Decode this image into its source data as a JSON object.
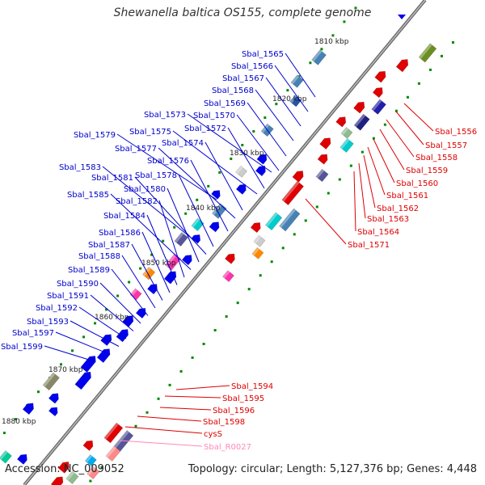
{
  "title": "Shewanella baltica OS155, complete genome",
  "footer": {
    "accession": "Accession: NC_009052",
    "summary": "Topology: circular; Length: 5,127,376 bp; Genes: 4,448"
  },
  "colors": {
    "backbone": "#777777",
    "forward": "#e00000",
    "reverse": "#0000ee",
    "rna": "#ff99cc",
    "tick": "#008800"
  },
  "ticks": [
    "1810 kbp",
    "1820 kbp",
    "1830 kbp",
    "1840 kbp",
    "1850 kbp",
    "1860 kbp",
    "1870 kbp",
    "1880 kbp"
  ],
  "labels_right": [
    "Sbal_1556",
    "Sbal_1557",
    "Sbal_1558",
    "Sbal_1559",
    "Sbal_1560",
    "Sbal_1561",
    "Sbal_1562",
    "Sbal_1563",
    "Sbal_1564",
    "Sbal_1571"
  ],
  "labels_left": [
    "Sbal_1565",
    "Sbal_1566",
    "Sbal_1567",
    "Sbal_1568",
    "Sbal_1569",
    "Sbal_1570",
    "Sbal_1573",
    "Sbal_1572",
    "Sbal_1575",
    "Sbal_1579",
    "Sbal_1574",
    "Sbal_1577",
    "Sbal_1576",
    "Sbal_1583",
    "Sbal_1578",
    "Sbal_1581",
    "Sbal_1580",
    "Sbal_1585",
    "Sbal_1582",
    "Sbal_1584",
    "Sbal_1586",
    "Sbal_1587",
    "Sbal_1588",
    "Sbal_1589",
    "Sbal_1590",
    "Sbal_1591",
    "Sbal_1592",
    "Sbal_1593",
    "Sbal_1597",
    "Sbal_1599"
  ],
  "labels_bottom": [
    "Sbal_1594",
    "Sbal_1595",
    "Sbal_1596",
    "Sbal_1598",
    "cysS",
    "Sbal_R0027"
  ]
}
